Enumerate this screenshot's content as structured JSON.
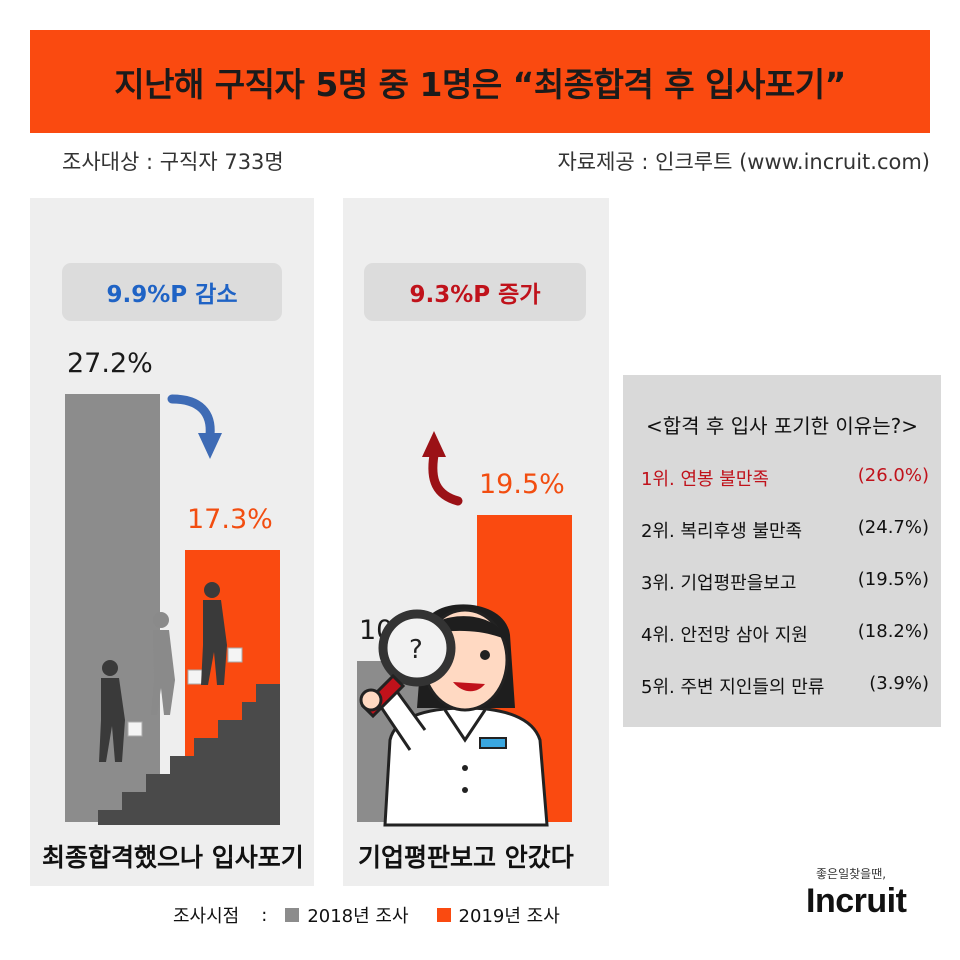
{
  "header": {
    "title": "지난해 구직자 5명 중 1명은 “최종합격 후 입사포기”",
    "survey_target": "조사대상 : 구직자 733명",
    "source": "자료제공 : 인크루트 (www.incruit.com)"
  },
  "colors": {
    "accent": "#fa4a10",
    "series_2018": "#8c8c8c",
    "series_2019": "#fa4a10",
    "decrease": "#1f63c5",
    "increase": "#c0121b"
  },
  "chart_data": [
    {
      "type": "bar",
      "xlabel": "최종합격했으나 입사포기",
      "categories": [
        "2018년 조사",
        "2019년 조사"
      ],
      "values": [
        27.2,
        17.3
      ],
      "value_labels": [
        "27.2%",
        "17.3%"
      ],
      "change_label": "9.9%P 감소",
      "ylim": [
        0,
        30
      ]
    },
    {
      "type": "bar",
      "xlabel": "기업평판보고 안갔다",
      "categories": [
        "2018년 조사",
        "2019년 조사"
      ],
      "values": [
        10.2,
        19.5
      ],
      "value_labels": [
        "10.2%",
        "19.5%"
      ],
      "change_label": "9.3%P 증가",
      "ylim": [
        0,
        30
      ]
    }
  ],
  "reasons": {
    "title": "<합격 후 입사 포기한 이유는?>",
    "items": [
      {
        "label": "1위. 연봉 불만족",
        "value": "(26.0%)"
      },
      {
        "label": "2위. 복리후생 불만족",
        "value": "(24.7%)"
      },
      {
        "label": "3위. 기업평판을보고",
        "value": "(19.5%)"
      },
      {
        "label": "4위. 안전망 삼아 지원",
        "value": "(18.2%)"
      },
      {
        "label": "5위. 주변 지인들의 만류",
        "value": "(3.9%)"
      }
    ]
  },
  "legend": {
    "title": "조사시점",
    "separator": ":",
    "items": [
      "2018년 조사",
      "2019년 조사"
    ]
  },
  "brand": {
    "slogan": "좋은일찾을땐,",
    "name": "Incruit"
  }
}
